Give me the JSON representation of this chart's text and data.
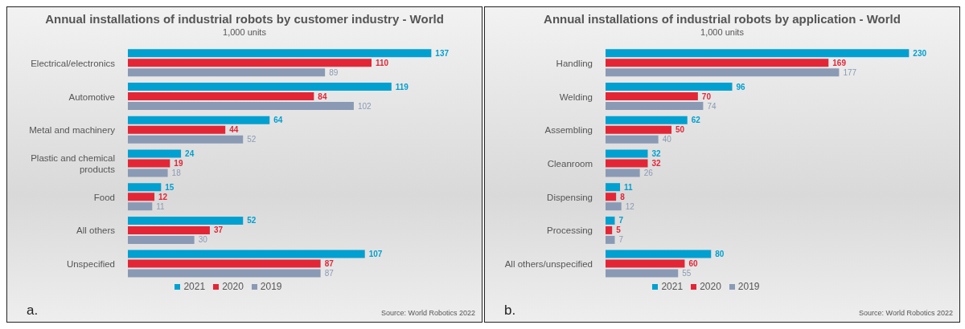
{
  "chart_data": [
    {
      "type": "bar",
      "orientation": "horizontal",
      "title": "Annual installations of industrial robots by customer industry - World",
      "subtitle": "1,000 units",
      "annotations": [
        "a.",
        "Source: World Robotics 2022"
      ],
      "categories": [
        "Electrical/electronics",
        "Automotive",
        "Metal and machinery",
        "Plastic and chemical products",
        "Food",
        "All others",
        "Unspecified"
      ],
      "data_labels": true,
      "legend": "bottom",
      "series": [
        {
          "name": "2021",
          "color": "#00a0d0",
          "values": [
            137,
            119,
            64,
            24,
            15,
            52,
            107
          ]
        },
        {
          "name": "2020",
          "color": "#e32636",
          "values": [
            110,
            84,
            44,
            19,
            12,
            37,
            87
          ]
        },
        {
          "name": "2019",
          "color": "#8a9ab5",
          "values": [
            89,
            102,
            52,
            18,
            11,
            30,
            87
          ]
        }
      ]
    },
    {
      "type": "bar",
      "orientation": "horizontal",
      "title": "Annual installations of industrial robots by application - World",
      "subtitle": "1,000 units",
      "annotations": [
        "b.",
        "Source: World Robotics 2022"
      ],
      "categories": [
        "Handling",
        "Welding",
        "Assembling",
        "Cleanroom",
        "Dispensing",
        "Processing",
        "All others/unspecified"
      ],
      "data_labels": true,
      "legend": "bottom",
      "series": [
        {
          "name": "2021",
          "color": "#00a0d0",
          "values": [
            230,
            96,
            62,
            32,
            11,
            7,
            80
          ]
        },
        {
          "name": "2020",
          "color": "#e32636",
          "values": [
            169,
            70,
            50,
            32,
            8,
            5,
            60
          ]
        },
        {
          "name": "2019",
          "color": "#8a9ab5",
          "values": [
            177,
            74,
            40,
            26,
            12,
            7,
            55
          ]
        }
      ]
    }
  ]
}
